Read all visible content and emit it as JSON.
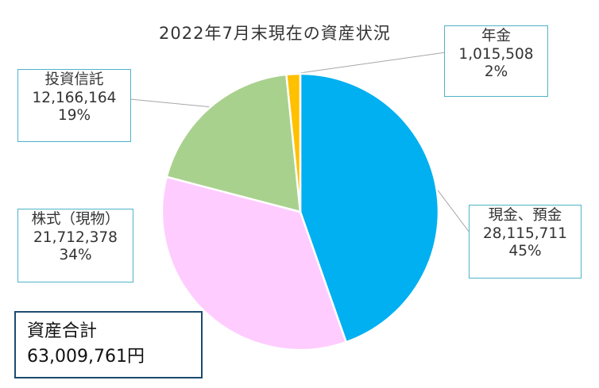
{
  "chart_data": {
    "type": "pie",
    "title": "2022年7月末現在の資産状況",
    "slices": [
      {
        "name": "現金、預金",
        "value": 28115711,
        "value_label": "28,115,711",
        "percent_label": "45%",
        "color": "#00b0f0"
      },
      {
        "name": "株式（現物）",
        "value": 21712378,
        "value_label": "21,712,378",
        "percent_label": "34%",
        "color": "#ffccff"
      },
      {
        "name": "投資信託",
        "value": 12166164,
        "value_label": "12,166,164",
        "percent_label": "19%",
        "color": "#a9d18e"
      },
      {
        "name": "年金",
        "value": 1015508,
        "value_label": "1,015,508",
        "percent_label": "2%",
        "color": "#ffc000"
      }
    ],
    "start_angle_deg": 0,
    "direction": "clockwise"
  },
  "total": {
    "label": "資産合計",
    "value": "63,009,761円"
  }
}
